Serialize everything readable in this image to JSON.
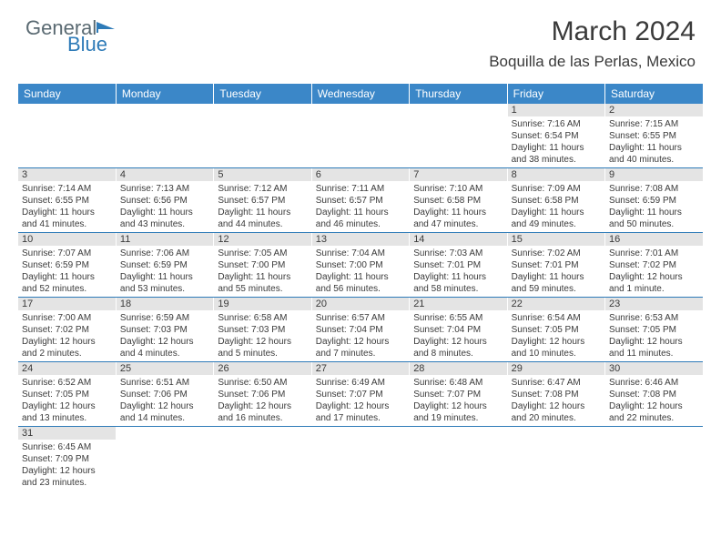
{
  "logo": {
    "text1": "General",
    "text2": "Blue"
  },
  "title": "March 2024",
  "location": "Boquilla de las Perlas, Mexico",
  "colors": {
    "header_bg": "#3b87c8",
    "header_text": "#ffffff",
    "daynum_bg": "#e4e4e4",
    "row_border": "#2e7bb8",
    "logo_gray": "#5a6a72",
    "logo_blue": "#2e7bb8",
    "text": "#3a3a3a",
    "background": "#ffffff"
  },
  "typography": {
    "title_fontsize": 30,
    "location_fontsize": 17,
    "header_fontsize": 12,
    "daynum_fontsize": 11,
    "content_fontsize": 10
  },
  "weekdays": [
    "Sunday",
    "Monday",
    "Tuesday",
    "Wednesday",
    "Thursday",
    "Friday",
    "Saturday"
  ],
  "weeks": [
    [
      null,
      null,
      null,
      null,
      null,
      {
        "n": "1",
        "sr": "7:16 AM",
        "ss": "6:54 PM",
        "dl": "11 hours and 38 minutes."
      },
      {
        "n": "2",
        "sr": "7:15 AM",
        "ss": "6:55 PM",
        "dl": "11 hours and 40 minutes."
      }
    ],
    [
      {
        "n": "3",
        "sr": "7:14 AM",
        "ss": "6:55 PM",
        "dl": "11 hours and 41 minutes."
      },
      {
        "n": "4",
        "sr": "7:13 AM",
        "ss": "6:56 PM",
        "dl": "11 hours and 43 minutes."
      },
      {
        "n": "5",
        "sr": "7:12 AM",
        "ss": "6:57 PM",
        "dl": "11 hours and 44 minutes."
      },
      {
        "n": "6",
        "sr": "7:11 AM",
        "ss": "6:57 PM",
        "dl": "11 hours and 46 minutes."
      },
      {
        "n": "7",
        "sr": "7:10 AM",
        "ss": "6:58 PM",
        "dl": "11 hours and 47 minutes."
      },
      {
        "n": "8",
        "sr": "7:09 AM",
        "ss": "6:58 PM",
        "dl": "11 hours and 49 minutes."
      },
      {
        "n": "9",
        "sr": "7:08 AM",
        "ss": "6:59 PM",
        "dl": "11 hours and 50 minutes."
      }
    ],
    [
      {
        "n": "10",
        "sr": "7:07 AM",
        "ss": "6:59 PM",
        "dl": "11 hours and 52 minutes."
      },
      {
        "n": "11",
        "sr": "7:06 AM",
        "ss": "6:59 PM",
        "dl": "11 hours and 53 minutes."
      },
      {
        "n": "12",
        "sr": "7:05 AM",
        "ss": "7:00 PM",
        "dl": "11 hours and 55 minutes."
      },
      {
        "n": "13",
        "sr": "7:04 AM",
        "ss": "7:00 PM",
        "dl": "11 hours and 56 minutes."
      },
      {
        "n": "14",
        "sr": "7:03 AM",
        "ss": "7:01 PM",
        "dl": "11 hours and 58 minutes."
      },
      {
        "n": "15",
        "sr": "7:02 AM",
        "ss": "7:01 PM",
        "dl": "11 hours and 59 minutes."
      },
      {
        "n": "16",
        "sr": "7:01 AM",
        "ss": "7:02 PM",
        "dl": "12 hours and 1 minute."
      }
    ],
    [
      {
        "n": "17",
        "sr": "7:00 AM",
        "ss": "7:02 PM",
        "dl": "12 hours and 2 minutes."
      },
      {
        "n": "18",
        "sr": "6:59 AM",
        "ss": "7:03 PM",
        "dl": "12 hours and 4 minutes."
      },
      {
        "n": "19",
        "sr": "6:58 AM",
        "ss": "7:03 PM",
        "dl": "12 hours and 5 minutes."
      },
      {
        "n": "20",
        "sr": "6:57 AM",
        "ss": "7:04 PM",
        "dl": "12 hours and 7 minutes."
      },
      {
        "n": "21",
        "sr": "6:55 AM",
        "ss": "7:04 PM",
        "dl": "12 hours and 8 minutes."
      },
      {
        "n": "22",
        "sr": "6:54 AM",
        "ss": "7:05 PM",
        "dl": "12 hours and 10 minutes."
      },
      {
        "n": "23",
        "sr": "6:53 AM",
        "ss": "7:05 PM",
        "dl": "12 hours and 11 minutes."
      }
    ],
    [
      {
        "n": "24",
        "sr": "6:52 AM",
        "ss": "7:05 PM",
        "dl": "12 hours and 13 minutes."
      },
      {
        "n": "25",
        "sr": "6:51 AM",
        "ss": "7:06 PM",
        "dl": "12 hours and 14 minutes."
      },
      {
        "n": "26",
        "sr": "6:50 AM",
        "ss": "7:06 PM",
        "dl": "12 hours and 16 minutes."
      },
      {
        "n": "27",
        "sr": "6:49 AM",
        "ss": "7:07 PM",
        "dl": "12 hours and 17 minutes."
      },
      {
        "n": "28",
        "sr": "6:48 AM",
        "ss": "7:07 PM",
        "dl": "12 hours and 19 minutes."
      },
      {
        "n": "29",
        "sr": "6:47 AM",
        "ss": "7:08 PM",
        "dl": "12 hours and 20 minutes."
      },
      {
        "n": "30",
        "sr": "6:46 AM",
        "ss": "7:08 PM",
        "dl": "12 hours and 22 minutes."
      }
    ],
    [
      {
        "n": "31",
        "sr": "6:45 AM",
        "ss": "7:09 PM",
        "dl": "12 hours and 23 minutes."
      },
      null,
      null,
      null,
      null,
      null,
      null
    ]
  ],
  "labels": {
    "sunrise": "Sunrise:",
    "sunset": "Sunset:",
    "daylight": "Daylight:"
  }
}
